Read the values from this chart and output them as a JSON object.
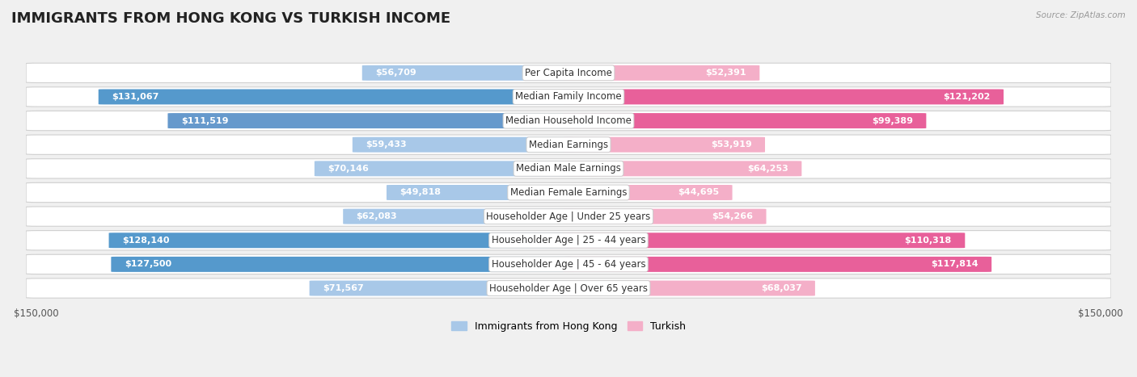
{
  "title": "IMMIGRANTS FROM HONG KONG VS TURKISH INCOME",
  "source": "Source: ZipAtlas.com",
  "categories": [
    "Per Capita Income",
    "Median Family Income",
    "Median Household Income",
    "Median Earnings",
    "Median Male Earnings",
    "Median Female Earnings",
    "Householder Age | Under 25 years",
    "Householder Age | 25 - 44 years",
    "Householder Age | 45 - 64 years",
    "Householder Age | Over 65 years"
  ],
  "hk_values": [
    56709,
    131067,
    111519,
    59433,
    70146,
    49818,
    62083,
    128140,
    127500,
    71567
  ],
  "turkish_values": [
    52391,
    121202,
    99389,
    53919,
    64253,
    44695,
    54266,
    110318,
    117814,
    68037
  ],
  "hk_colors": [
    "#a8c8e8",
    "#5599cc",
    "#6699cc",
    "#a8c8e8",
    "#a8c8e8",
    "#a8c8e8",
    "#a8c8e8",
    "#5599cc",
    "#5599cc",
    "#a8c8e8"
  ],
  "turkish_colors": [
    "#f4afc8",
    "#e8609a",
    "#e8609a",
    "#f4afc8",
    "#f4afc8",
    "#f4afc8",
    "#f4afc8",
    "#e8609a",
    "#e8609a",
    "#f4afc8"
  ],
  "hk_inside_threshold": 100000,
  "turkish_inside_threshold": 100000,
  "max_value": 150000,
  "bg_color": "#f0f0f0",
  "row_bg": "#f8f8f8",
  "center_label_bg": "#ffffff",
  "center_label_border": "#cccccc",
  "title_fontsize": 13,
  "label_fontsize": 8.5,
  "value_fontsize": 8,
  "axis_fontsize": 8.5,
  "legend_fontsize": 9
}
